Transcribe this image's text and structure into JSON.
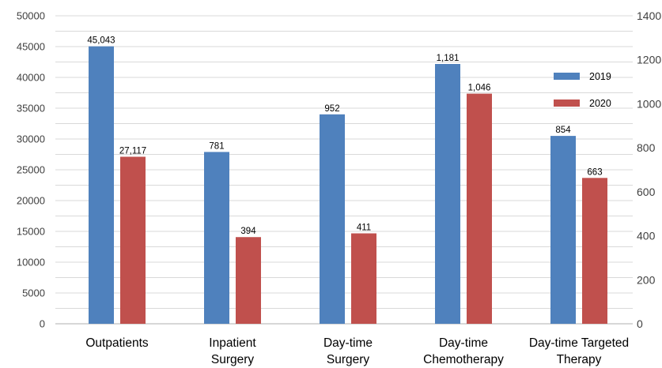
{
  "chart_data": {
    "type": "bar",
    "categories": [
      [
        "Outpatients"
      ],
      [
        "Inpatient",
        "Surgery"
      ],
      [
        "Day-time",
        "Surgery"
      ],
      [
        "Day-time",
        "Chemotherapy"
      ],
      [
        "Day-time Targeted",
        "Therapy"
      ]
    ],
    "series": [
      {
        "name": "2019",
        "values": [
          45043,
          781,
          952,
          1181,
          854
        ],
        "labels": [
          "45,043",
          "781",
          "952",
          "1,181",
          "854"
        ],
        "axis": [
          "left",
          "right",
          "right",
          "right",
          "right"
        ]
      },
      {
        "name": "2020",
        "values": [
          27117,
          394,
          411,
          1046,
          663
        ],
        "labels": [
          "27,117",
          "394",
          "411",
          "1,046",
          "663"
        ],
        "axis": [
          "left",
          "right",
          "right",
          "right",
          "right"
        ]
      }
    ],
    "y_left": {
      "range": [
        0,
        50000
      ],
      "ticks": [
        "0",
        "5000",
        "10000",
        "15000",
        "20000",
        "25000",
        "30000",
        "35000",
        "40000",
        "45000",
        "50000"
      ]
    },
    "y_right": {
      "range": [
        0,
        1400
      ],
      "ticks": [
        "0",
        "200",
        "400",
        "600",
        "800",
        "1000",
        "1200",
        "1400"
      ]
    },
    "grid": true,
    "legend": "right",
    "colors": {
      "2019": "#4f81bd",
      "2020": "#c0504d",
      "grid": "#d9d9d9",
      "axis": "#bfbfbf"
    }
  }
}
